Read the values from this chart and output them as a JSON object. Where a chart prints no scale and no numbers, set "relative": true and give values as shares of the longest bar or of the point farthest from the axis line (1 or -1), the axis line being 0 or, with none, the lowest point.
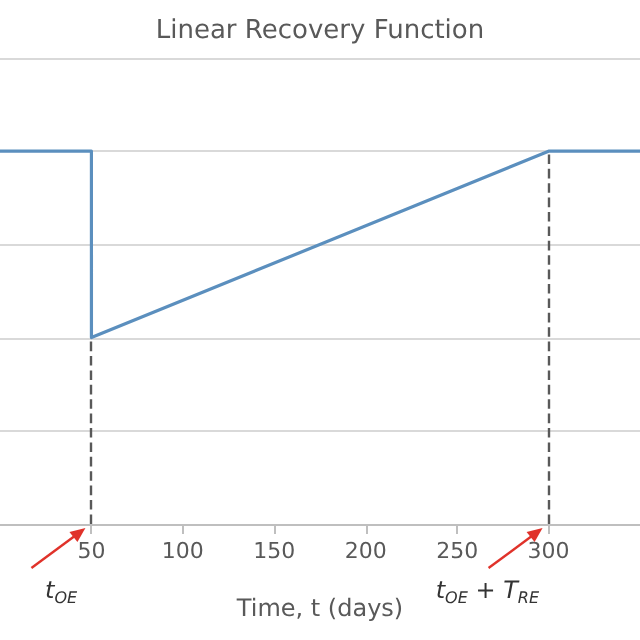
{
  "chart_data": {
    "type": "line",
    "title": "Linear Recovery Function",
    "xlabel": "Time, t (days)",
    "relative": true,
    "x": [
      0,
      50,
      50,
      300,
      350
    ],
    "series": [
      {
        "color": "#5b8fbe",
        "values": [
          1,
          1,
          0.5,
          1,
          1
        ]
      }
    ],
    "xlim": [
      0,
      350
    ],
    "xticks": [
      50,
      100,
      150,
      200,
      250,
      300
    ],
    "ref_lines": [
      {
        "axis": "x",
        "value": 50,
        "label": "t$_{OE}$",
        "color": "#595959",
        "line_style": "dashed"
      },
      {
        "axis": "x",
        "value": 300,
        "label": "t$_{OE}$ + T$_{RE}$",
        "color": "#595959",
        "line_style": "dashed"
      }
    ],
    "grid": "y",
    "marker": "none",
    "line_style": "solid"
  }
}
